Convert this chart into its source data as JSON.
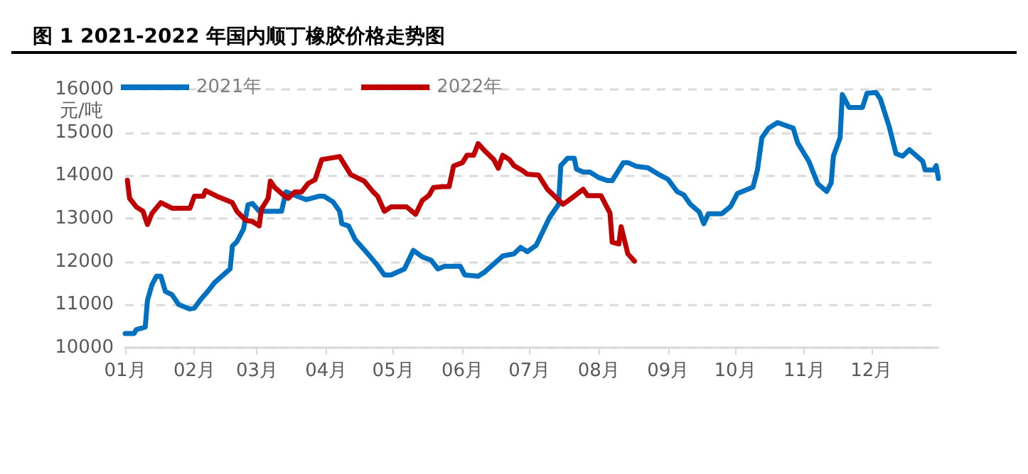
{
  "chart_data": {
    "type": "line",
    "title": "图 1 2021-2022 年国内顺丁橡胶价格走势图",
    "ylabel": "元/吨",
    "xlim": [
      "--01-01",
      "--12-31"
    ],
    "xticks": [
      {
        "value": "--01-01",
        "label": "01月"
      },
      {
        "value": "--02-01",
        "label": "02月"
      },
      {
        "value": "--03-01",
        "label": "03月"
      },
      {
        "value": "--04-01",
        "label": "04月"
      },
      {
        "value": "--05-01",
        "label": "05月"
      },
      {
        "value": "--06-01",
        "label": "06月"
      },
      {
        "value": "--07-01",
        "label": "07月"
      },
      {
        "value": "--08-01",
        "label": "08月"
      },
      {
        "value": "--09-01",
        "label": "09月"
      },
      {
        "value": "--10-01",
        "label": "10月"
      },
      {
        "value": "--11-01",
        "label": "11月"
      },
      {
        "value": "--12-01",
        "label": "12月"
      }
    ],
    "ylim": [
      10000,
      16000
    ],
    "yticks": [
      10000,
      11000,
      12000,
      13000,
      14000,
      15000,
      16000
    ],
    "grid": "y",
    "legend": "top left",
    "marker": "none",
    "line_style": "solid",
    "series": [
      {
        "name": "2021年",
        "color": "#0070c0",
        "x": [
          "--01-01",
          "--01-05",
          "--01-06",
          "--01-10",
          "--01-11",
          "--01-13",
          "--01-15",
          "--01-17",
          "--01-19",
          "--01-22",
          "--01-25",
          "--01-30",
          "--02-01",
          "--02-04",
          "--02-07",
          "--02-10",
          "--02-17",
          "--02-18",
          "--02-20",
          "--02-23",
          "--02-25",
          "--02-27",
          "--03-02",
          "--03-05",
          "--03-12",
          "--03-14",
          "--03-18",
          "--03-23",
          "--03-29",
          "--03-31",
          "--04-04",
          "--04-07",
          "--04-08",
          "--04-11",
          "--04-14",
          "--04-20",
          "--04-24",
          "--04-27",
          "--04-30",
          "--05-06",
          "--05-10",
          "--05-14",
          "--05-18",
          "--05-21",
          "--05-24",
          "--05-31",
          "--06-02",
          "--06-08",
          "--06-11",
          "--06-19",
          "--06-24",
          "--06-27",
          "--06-30",
          "--07-04",
          "--07-10",
          "--07-14",
          "--07-15",
          "--07-18",
          "--07-21",
          "--07-22",
          "--07-25",
          "--07-28",
          "--08-01",
          "--08-05",
          "--08-07",
          "--08-12",
          "--08-14",
          "--08-18",
          "--08-23",
          "--08-27",
          "--09-01",
          "--09-05",
          "--09-08",
          "--09-11",
          "--09-15",
          "--09-17",
          "--09-19",
          "--09-25",
          "--09-29",
          "--10-02",
          "--10-09",
          "--10-11",
          "--10-13",
          "--10-16",
          "--10-20",
          "--10-27",
          "--10-29",
          "--11-03",
          "--11-07",
          "--11-11",
          "--11-13",
          "--11-14",
          "--11-17",
          "--11-18",
          "--11-21",
          "--11-27",
          "--11-29",
          "--12-03",
          "--12-05",
          "--12-09",
          "--12-12",
          "--12-15",
          "--12-18",
          "--12-24",
          "--12-25",
          "--12-28",
          "--12-29",
          "--12-30",
          "--12-31"
        ],
        "values": [
          10330,
          10330,
          10420,
          10480,
          11100,
          11460,
          11660,
          11660,
          11310,
          11230,
          11000,
          10900,
          10920,
          11130,
          11310,
          11510,
          11830,
          12360,
          12460,
          12760,
          13320,
          13350,
          13170,
          13170,
          13170,
          13620,
          13540,
          13440,
          13520,
          13520,
          13390,
          13170,
          12880,
          12830,
          12510,
          12160,
          11910,
          11690,
          11690,
          11830,
          12260,
          12110,
          12030,
          11830,
          11890,
          11890,
          11690,
          11660,
          11760,
          12130,
          12180,
          12330,
          12230,
          12380,
          13030,
          13330,
          14230,
          14400,
          14400,
          14150,
          14080,
          14080,
          13950,
          13880,
          13880,
          14300,
          14300,
          14210,
          14180,
          14050,
          13910,
          13630,
          13550,
          13330,
          13150,
          12880,
          13110,
          13110,
          13280,
          13580,
          13730,
          14130,
          14880,
          15100,
          15230,
          15100,
          14760,
          14330,
          13810,
          13630,
          13830,
          14450,
          14880,
          15880,
          15580,
          15580,
          15910,
          15930,
          15780,
          15130,
          14510,
          14450,
          14600,
          14330,
          14130,
          14130,
          14130,
          14230,
          13930
        ]
      },
      {
        "name": "2022年",
        "color": "#c00000",
        "x": [
          "--01-02",
          "--01-03",
          "--01-06",
          "--01-09",
          "--01-11",
          "--01-13",
          "--01-17",
          "--01-22",
          "--01-30",
          "--02-01",
          "--02-05",
          "--02-06",
          "--02-11",
          "--02-18",
          "--02-20",
          "--02-24",
          "--02-27",
          "--03-02",
          "--03-03",
          "--03-06",
          "--03-07",
          "--03-09",
          "--03-13",
          "--03-15",
          "--03-18",
          "--03-21",
          "--03-24",
          "--03-27",
          "--03-30",
          "--04-07",
          "--04-12",
          "--04-18",
          "--04-22",
          "--04-24",
          "--04-27",
          "--04-30",
          "--05-07",
          "--05-11",
          "--05-14",
          "--05-17",
          "--05-19",
          "--05-23",
          "--05-26",
          "--05-28",
          "--06-01",
          "--06-03",
          "--06-06",
          "--06-08",
          "--06-11",
          "--06-15",
          "--06-17",
          "--06-19",
          "--06-22",
          "--06-24",
          "--06-28",
          "--06-30",
          "--07-05",
          "--07-09",
          "--07-13",
          "--07-16",
          "--07-20",
          "--07-25",
          "--07-27",
          "--08-02",
          "--08-06",
          "--08-07",
          "--08-10",
          "--08-11",
          "--08-14",
          "--08-17"
        ],
        "values": [
          13890,
          13470,
          13270,
          13170,
          12860,
          13120,
          13370,
          13240,
          13240,
          13520,
          13520,
          13650,
          13520,
          13370,
          13170,
          12960,
          12930,
          12830,
          13220,
          13470,
          13870,
          13720,
          13540,
          13470,
          13620,
          13620,
          13820,
          13900,
          14370,
          14440,
          14020,
          13870,
          13620,
          13520,
          13170,
          13270,
          13270,
          13100,
          13420,
          13540,
          13720,
          13740,
          13740,
          14220,
          14300,
          14470,
          14470,
          14740,
          14570,
          14370,
          14170,
          14470,
          14370,
          14230,
          14110,
          14030,
          14010,
          13680,
          13480,
          13330,
          13480,
          13680,
          13530,
          13530,
          13130,
          12450,
          12410,
          12810,
          12180,
          12010
        ]
      }
    ]
  }
}
